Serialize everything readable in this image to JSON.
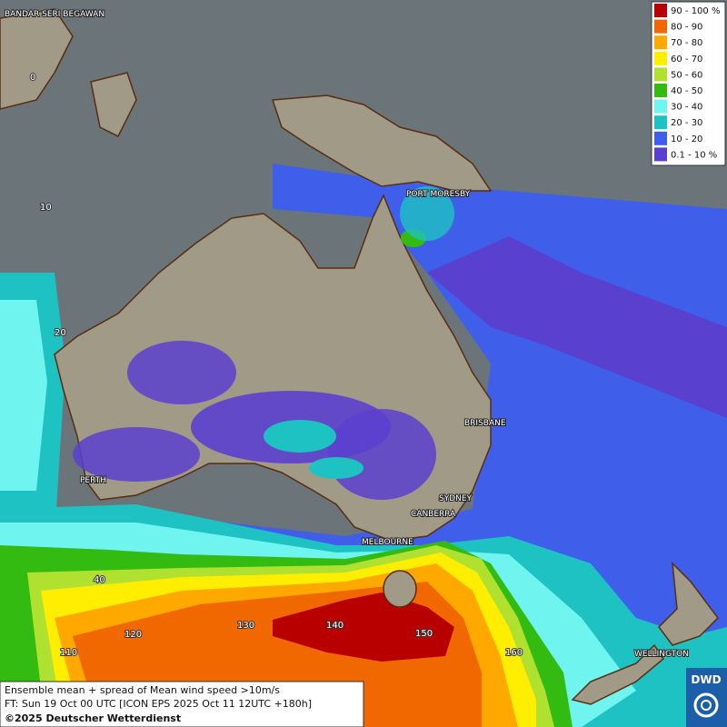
{
  "map": {
    "cities": [
      "BANDAR SERI BEGAWAN",
      "PORT MORESBY",
      "BRISBANE",
      "PERTH",
      "SYDNEY",
      "CANBERRA",
      "MELBOURNE",
      "WELLINGTON"
    ],
    "grid_labels": [
      "0",
      "10",
      "20",
      "40",
      "110",
      "120",
      "130",
      "140",
      "150",
      "160"
    ]
  },
  "legend": {
    "items": [
      {
        "label": "90 - 100 %",
        "color": "#b80000"
      },
      {
        "label": "80 - 90",
        "color": "#f26800"
      },
      {
        "label": "70 - 80",
        "color": "#ffa800"
      },
      {
        "label": "60 - 70",
        "color": "#ffee00"
      },
      {
        "label": "50 - 60",
        "color": "#b0e030"
      },
      {
        "label": "40 - 50",
        "color": "#33bb11"
      },
      {
        "label": "30 - 40",
        "color": "#70f4f0"
      },
      {
        "label": "20 - 30",
        "color": "#1fc2c2"
      },
      {
        "label": "10 - 20",
        "color": "#3f5fea"
      },
      {
        "label": "0.1 - 10 %",
        "color": "#5a40cf"
      }
    ]
  },
  "caption": {
    "lines": [
      "Ensemble mean + spread of Mean wind speed >10m/s",
      "FT: Sun 19 Oct 00 UTC [ICON EPS 2025 Oct 11 12UTC +180h]",
      "©2025 Deutscher Wetterdienst"
    ]
  },
  "logo": {
    "label": "DWD"
  }
}
